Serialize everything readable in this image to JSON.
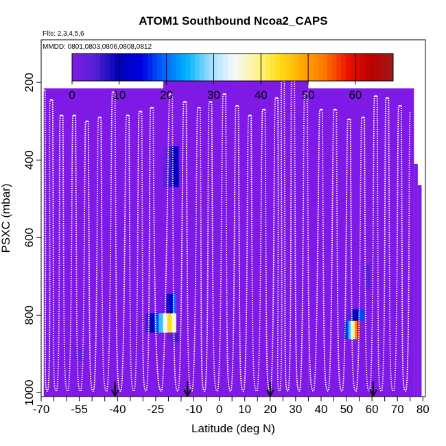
{
  "chart_data": {
    "type": "heatmap",
    "title": "ATOM1 Southbound Ncoa2_CAPS",
    "flights_note": "Flts: 2,3,4,5,6",
    "dates_note": "MMDD: 0801,0803,0806,0808,0812",
    "xlabel": "Latitude (deg N)",
    "ylabel": "PSXC (mbar)",
    "xlim": [
      -70,
      81
    ],
    "ylim": [
      1010,
      90
    ],
    "x_tick_labels": [
      -70,
      -55,
      -40,
      -25,
      -10,
      0,
      10,
      20,
      30,
      40,
      50,
      60,
      70,
      80
    ],
    "x_minor_ticks": [
      -65,
      -60,
      -50,
      -45,
      -35,
      -30,
      -20,
      -15,
      -5,
      5,
      15,
      25,
      35,
      45,
      55,
      65,
      75
    ],
    "y_ticks": [
      200,
      400,
      600,
      800,
      1000
    ],
    "colorbar": {
      "range": [
        0,
        68
      ],
      "ticks": [
        0,
        10,
        20,
        30,
        40,
        50,
        60
      ],
      "colors": [
        "#7F1AE6",
        "#5522D4",
        "#0000B8",
        "#0000E0",
        "#0066FF",
        "#00B2FF",
        "#99DDFF",
        "#F2F8FF",
        "#FFF59A",
        "#FFE01A",
        "#FFAA00",
        "#FF7700",
        "#EE1100",
        "#BB0000",
        "#A01818"
      ]
    },
    "background_value": 0,
    "coverage": [
      {
        "lat_min": -69,
        "lat_max": -22,
        "p_top": 215
      },
      {
        "lat_min": -22,
        "lat_max": 35,
        "p_top": 170
      },
      {
        "lat_min": 35,
        "lat_max": 76.5,
        "p_top": 215
      },
      {
        "lat_min": 76.5,
        "lat_max": 78,
        "p_top": 410
      },
      {
        "lat_min": 78,
        "lat_max": 79.5,
        "p_top": 465
      }
    ],
    "enhanced_cells": [
      {
        "lat": [
          -22,
          -16
        ],
        "p": [
          365,
          420
        ],
        "values": [
          2,
          6,
          9,
          12
        ]
      },
      {
        "lat": [
          -22,
          -16
        ],
        "p": [
          420,
          470
        ],
        "values": [
          4,
          7,
          10
        ]
      },
      {
        "lat": [
          -22,
          -17
        ],
        "p": [
          745,
          795
        ],
        "values": [
          3,
          8,
          14,
          20
        ]
      },
      {
        "lat": [
          -29,
          -17
        ],
        "p": [
          795,
          845
        ],
        "values": [
          6,
          10,
          18,
          26,
          34,
          44,
          36
        ]
      },
      {
        "lat": [
          -20,
          -16
        ],
        "p": [
          845,
          870
        ],
        "values": [
          3,
          6
        ]
      },
      {
        "lat": [
          50,
          57
        ],
        "p": [
          785,
          815
        ],
        "values": [
          4,
          10,
          18
        ]
      },
      {
        "lat": [
          49,
          55
        ],
        "p": [
          815,
          862
        ],
        "values": [
          10,
          18,
          26,
          32,
          40,
          52,
          60
        ]
      },
      {
        "lat": [
          57,
          59
        ],
        "p": [
          670,
          735
        ],
        "values": [
          3,
          5
        ]
      },
      {
        "lat": [
          -57,
          -53
        ],
        "p": [
          885,
          920
        ],
        "values": [
          2,
          3
        ]
      }
    ],
    "flight_profiles": [
      {
        "lat": -69.0,
        "p_top": 220
      },
      {
        "lat": -66.0,
        "p_top": 245
      },
      {
        "lat": -62.0,
        "p_top": 285
      },
      {
        "lat": -57.0,
        "p_top": 285
      },
      {
        "lat": -52.0,
        "p_top": 300
      },
      {
        "lat": -47.0,
        "p_top": 290
      },
      {
        "lat": -41.5,
        "p_top": 225
      },
      {
        "lat": -36.0,
        "p_top": 285
      },
      {
        "lat": -31.0,
        "p_top": 275
      },
      {
        "lat": -26.5,
        "p_top": 265
      },
      {
        "lat": -19.0,
        "p_top": 230
      },
      {
        "lat": -13.5,
        "p_top": 250
      },
      {
        "lat": -8.0,
        "p_top": 265
      },
      {
        "lat": -3.5,
        "p_top": 250
      },
      {
        "lat": 2.0,
        "p_top": 230
      },
      {
        "lat": 7.0,
        "p_top": 260
      },
      {
        "lat": 12.0,
        "p_top": 285
      },
      {
        "lat": 17.5,
        "p_top": 270
      },
      {
        "lat": 22.5,
        "p_top": 240
      },
      {
        "lat": 25.0,
        "p_top": 185
      },
      {
        "lat": 29.0,
        "p_top": 180
      },
      {
        "lat": 34.0,
        "p_top": 230
      },
      {
        "lat": 40.0,
        "p_top": 270
      },
      {
        "lat": 45.5,
        "p_top": 270
      },
      {
        "lat": 51.0,
        "p_top": 295
      },
      {
        "lat": 56.5,
        "p_top": 290
      },
      {
        "lat": 61.5,
        "p_top": 235
      },
      {
        "lat": 66.0,
        "p_top": 240
      },
      {
        "lat": 71.0,
        "p_top": 260
      },
      {
        "lat": 75.5,
        "p_top": 275
      }
    ],
    "marker_latitudes": [
      -41,
      -12.5,
      20,
      60.5
    ]
  }
}
